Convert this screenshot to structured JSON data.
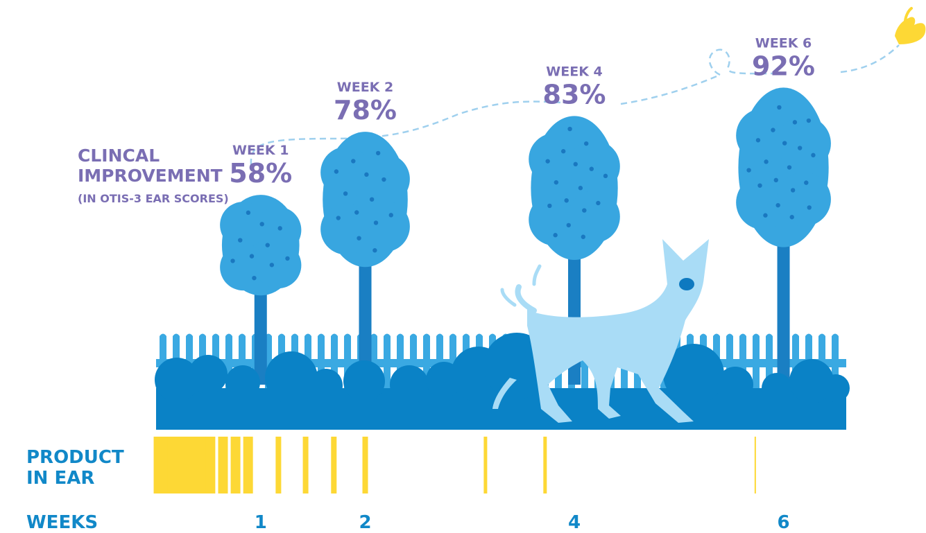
{
  "colors": {
    "purple": "#7a6eb3",
    "label_blue": "#1188c8",
    "tree": "#38a6e0",
    "tree_dot": "#1a78c0",
    "trunk": "#1a7fc3",
    "fence": "#3aa9e2",
    "bush": "#0a82c6",
    "dog": "#a9dcf6",
    "dog_nose": "#0e79c0",
    "bar": "#fdd835",
    "path": "#9fd0ee"
  },
  "labels": {
    "y_title_line1": "CLINCAL",
    "y_title_line2": "IMPROVEMENT",
    "y_subtitle": "(IN OTIS-3 EAR SCORES)",
    "product_line1": "PRODUCT",
    "product_line2": "IN EAR",
    "weeks": "WEEKS"
  },
  "chart_data": {
    "type": "bar",
    "series": [
      {
        "values": [
          58,
          78,
          83,
          92
        ],
        "labels": [
          "WEEK 1",
          "WEEK 2",
          "WEEK 4",
          "WEEK 6"
        ],
        "value_labels": [
          "58%",
          "78%",
          "83%",
          "92%"
        ],
        "week": [
          1,
          2,
          4,
          6
        ]
      }
    ],
    "xlabel": "WEEKS",
    "ylabel": "CLINCAL IMPROVEMENT",
    "y_subtitle": "(IN OTIS-3 EAR SCORES)",
    "x_ticks": [
      1,
      2,
      4,
      6
    ],
    "x_tick_labels": [
      "1",
      "2",
      "4",
      "6"
    ],
    "xlim": [
      0,
      6.6
    ],
    "ylim": [
      0,
      100
    ],
    "grid": false,
    "product_in_ear": {
      "description_label": "PRODUCT IN EAR",
      "application_weeks": [
        0.05,
        0.18,
        0.3,
        0.41,
        0.52,
        0.64,
        0.76,
        0.88,
        1.17,
        1.43,
        1.7,
        2.0,
        3.15,
        3.72,
        5.73
      ]
    }
  }
}
